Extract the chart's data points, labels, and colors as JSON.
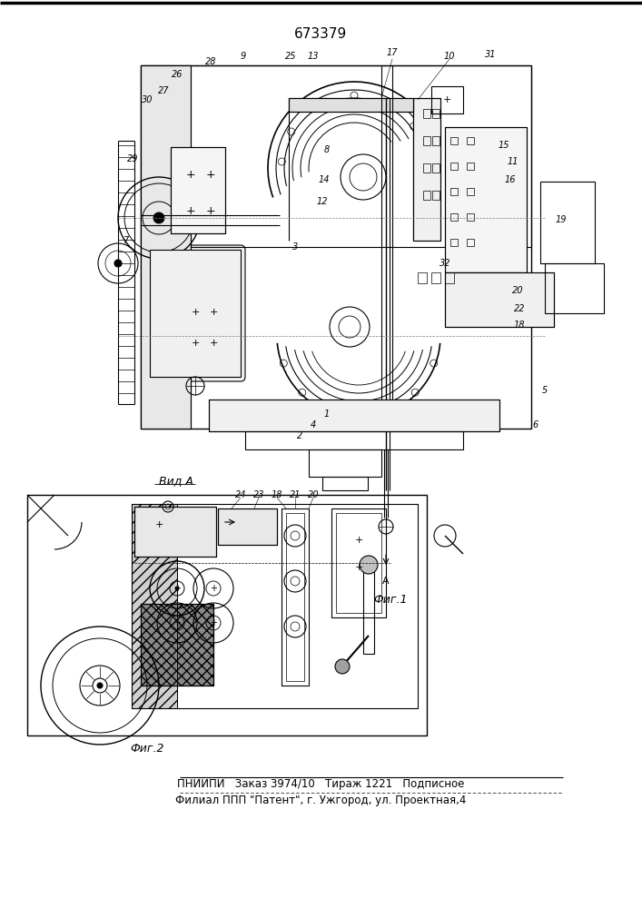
{
  "patent_number": "673379",
  "title_line1": "ПНИИПИ   Заказ 3974/10   Тираж 1221   Подписное",
  "title_line2": "Филиал ППП \"Патент\", г. Ужгород, ул. Проектная,4",
  "fig1_label": "Фиг.1",
  "fig2_label": "Фиг.2",
  "vid_a_label": "Вид A",
  "background": "#ffffff",
  "fig_width": 7.07,
  "fig_height": 10.0,
  "dpi": 100
}
